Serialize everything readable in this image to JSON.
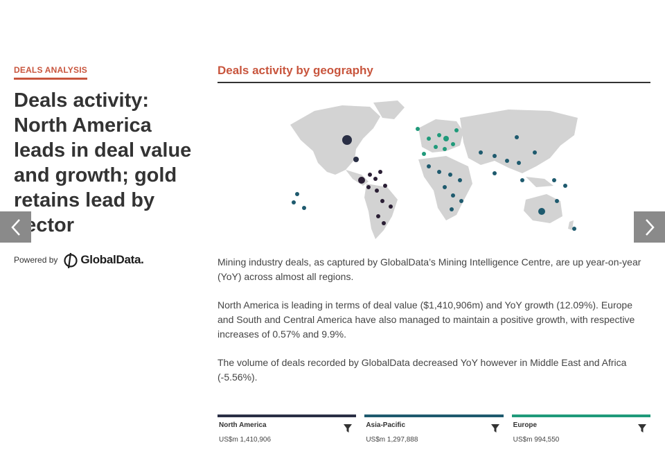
{
  "article": {
    "kicker": "DEALS ANALYSIS",
    "headline": "Deals activity: North America leads in deal value and growth; gold retains lead by sector",
    "powered_by": "Powered by",
    "logo_text": "GlobalData."
  },
  "section": {
    "title": "Deals activity by geography",
    "paragraphs": [
      "Mining industry deals, as captured by GlobalData’s Mining Intelligence Centre, are up year-on-year (YoY) across almost all regions.",
      "North America is leading in terms of deal value ($1,410,906m) and YoY growth (12.09%). Europe and South and Central America have also managed to maintain a positive growth, with respective increases of 0.57% and 9.9%.",
      "The volume of deals recorded by GlobalData decreased YoY however in Middle East and Africa (-5.56%)."
    ]
  },
  "region_cards": [
    {
      "name": "North America",
      "value": "US$m 1,410,906",
      "color": "#2a2f45"
    },
    {
      "name": "Asia-Pacific",
      "value": "US$m 1,297,888",
      "color": "#1e5a6e"
    },
    {
      "name": "Europe",
      "value": "US$m 994,550",
      "color": "#1f9a7a"
    }
  ],
  "icons": {
    "prev": "chevron-left-icon",
    "next": "chevron-right-icon",
    "filter": "filter-icon",
    "logo": "globaldata-logo-icon"
  },
  "colors": {
    "accent": "#c8553d",
    "map_land": "#d3d3d3",
    "north_america": "#2a2f45",
    "south_america": "#2b1f35",
    "europe": "#1f9a7a",
    "asia": "#1e5a6e"
  }
}
